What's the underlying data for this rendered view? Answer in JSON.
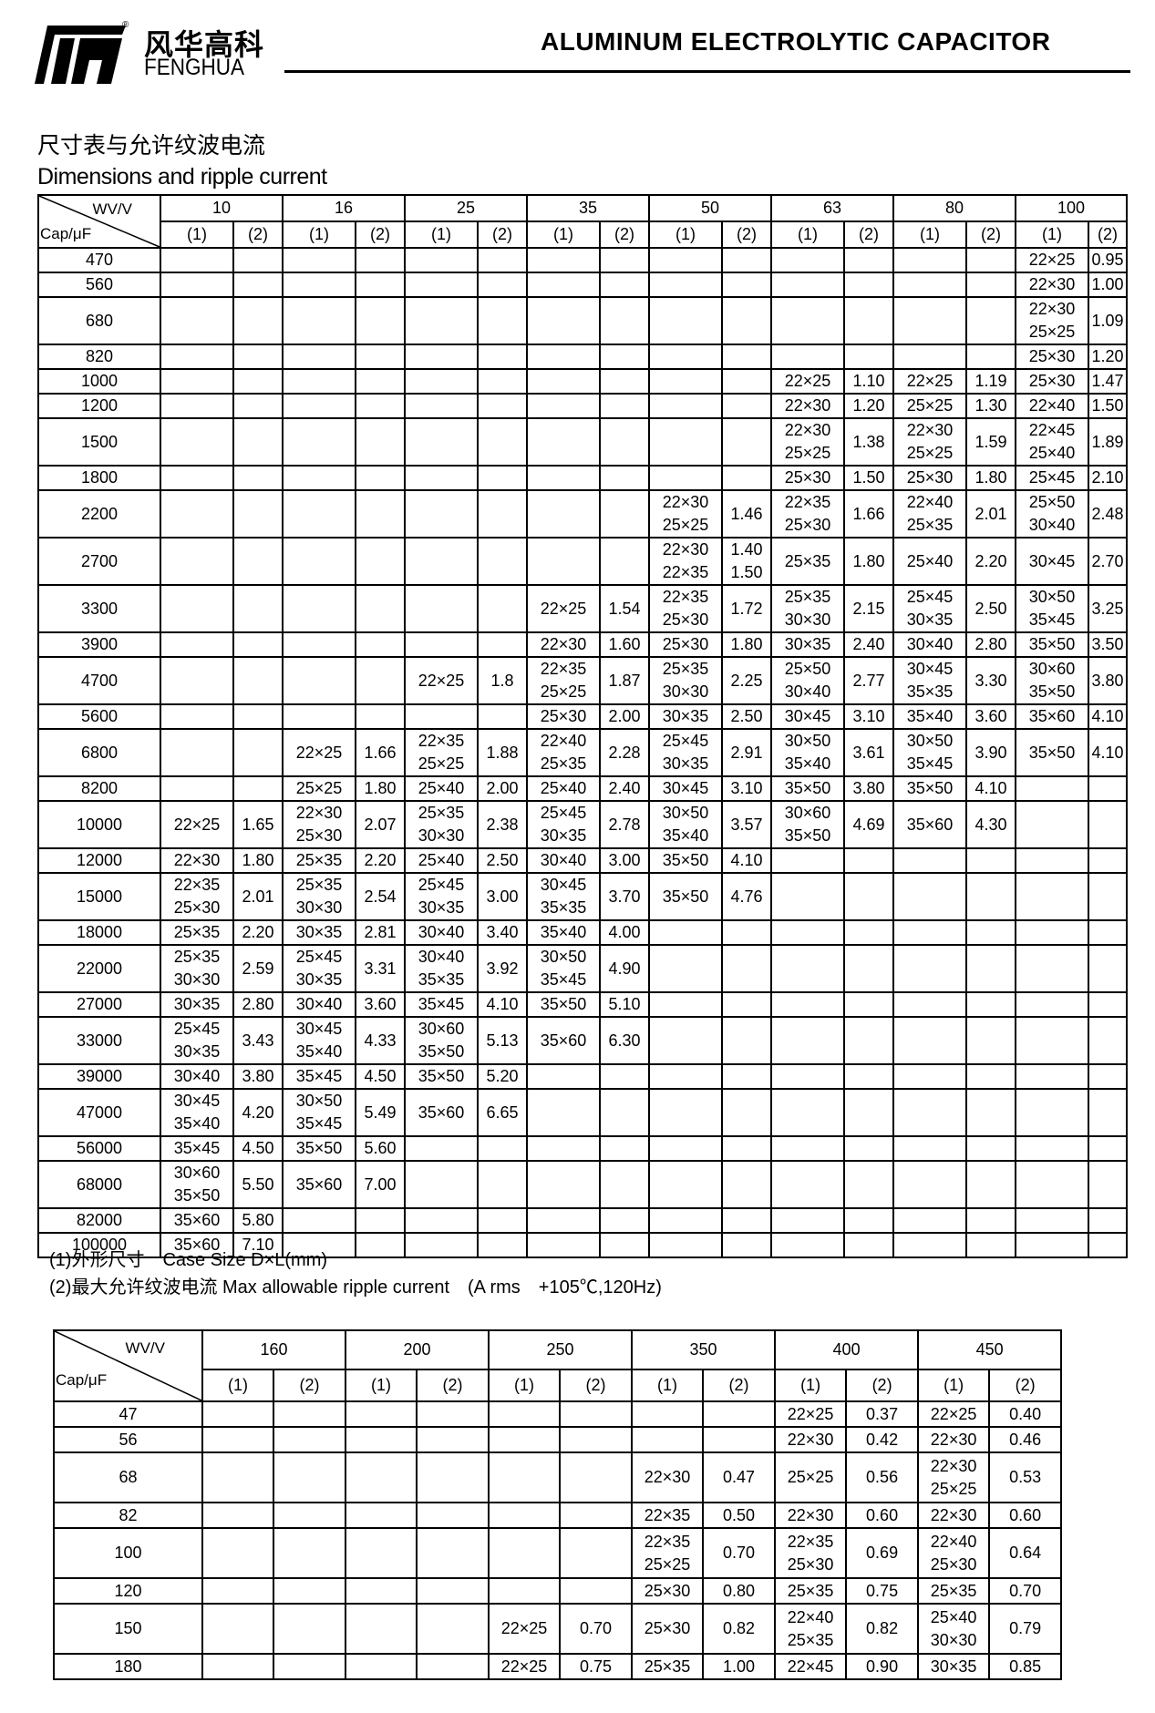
{
  "header": {
    "brand_cn": "风华高科",
    "brand_en": "FENGHUA",
    "registered": "®",
    "title": "ALUMINUM ELECTROLYTIC CAPACITOR"
  },
  "section": {
    "title_cn": "尺寸表与允许纹波电流",
    "title_en": "Dimensions and ripple current"
  },
  "table_labels": {
    "wv": "WV/V",
    "cap": "Cap/μF",
    "col1": "(1)",
    "col2": "(2)"
  },
  "table1": {
    "voltages": [
      "10",
      "16",
      "25",
      "35",
      "50",
      "63",
      "80",
      "100"
    ],
    "rows": [
      {
        "cap": "470",
        "tall": false,
        "cells": [
          "",
          "",
          "",
          "",
          "",
          "",
          "",
          "",
          "",
          "",
          "",
          "",
          "",
          "",
          "22×25",
          "0.95"
        ]
      },
      {
        "cap": "560",
        "tall": false,
        "cells": [
          "",
          "",
          "",
          "",
          "",
          "",
          "",
          "",
          "",
          "",
          "",
          "",
          "",
          "",
          "22×30",
          "1.00"
        ]
      },
      {
        "cap": "680",
        "tall": true,
        "cells": [
          "",
          "",
          "",
          "",
          "",
          "",
          "",
          "",
          "",
          "",
          "",
          "",
          "",
          "",
          "22×30\n25×25",
          "1.09"
        ]
      },
      {
        "cap": "820",
        "tall": false,
        "cells": [
          "",
          "",
          "",
          "",
          "",
          "",
          "",
          "",
          "",
          "",
          "",
          "",
          "",
          "",
          "25×30",
          "1.20"
        ]
      },
      {
        "cap": "1000",
        "tall": false,
        "cells": [
          "",
          "",
          "",
          "",
          "",
          "",
          "",
          "",
          "",
          "",
          "22×25",
          "1.10",
          "22×25",
          "1.19",
          "25×30",
          "1.47"
        ]
      },
      {
        "cap": "1200",
        "tall": false,
        "cells": [
          "",
          "",
          "",
          "",
          "",
          "",
          "",
          "",
          "",
          "",
          "22×30",
          "1.20",
          "25×25",
          "1.30",
          "22×40",
          "1.50"
        ]
      },
      {
        "cap": "1500",
        "tall": true,
        "cells": [
          "",
          "",
          "",
          "",
          "",
          "",
          "",
          "",
          "",
          "",
          "22×30\n25×25",
          "1.38",
          "22×30\n25×25",
          "1.59",
          "22×45\n25×40",
          "1.89"
        ]
      },
      {
        "cap": "1800",
        "tall": false,
        "cells": [
          "",
          "",
          "",
          "",
          "",
          "",
          "",
          "",
          "",
          "",
          "25×30",
          "1.50",
          "25×30",
          "1.80",
          "25×45",
          "2.10"
        ]
      },
      {
        "cap": "2200",
        "tall": true,
        "cells": [
          "",
          "",
          "",
          "",
          "",
          "",
          "",
          "",
          "22×30\n25×25",
          "1.46",
          "22×35\n25×30",
          "1.66",
          "22×40\n25×35",
          "2.01",
          "25×50\n30×40",
          "2.48"
        ]
      },
      {
        "cap": "2700",
        "tall": true,
        "cells": [
          "",
          "",
          "",
          "",
          "",
          "",
          "",
          "",
          "22×30\n22×35",
          "1.40\n1.50",
          "25×35",
          "1.80",
          "25×40",
          "2.20",
          "30×45",
          "2.70"
        ]
      },
      {
        "cap": "3300",
        "tall": true,
        "cells": [
          "",
          "",
          "",
          "",
          "",
          "",
          "22×25",
          "1.54",
          "22×35\n25×30",
          "1.72",
          "25×35\n30×30",
          "2.15",
          "25×45\n30×35",
          "2.50",
          "30×50\n35×45",
          "3.25"
        ]
      },
      {
        "cap": "3900",
        "tall": false,
        "cells": [
          "",
          "",
          "",
          "",
          "",
          "",
          "22×30",
          "1.60",
          "25×30",
          "1.80",
          "30×35",
          "2.40",
          "30×40",
          "2.80",
          "35×50",
          "3.50"
        ]
      },
      {
        "cap": "4700",
        "tall": true,
        "cells": [
          "",
          "",
          "",
          "",
          "22×25",
          "1.8",
          "22×35\n25×25",
          "1.87",
          "25×35\n30×30",
          "2.25",
          "25×50\n30×40",
          "2.77",
          "30×45\n35×35",
          "3.30",
          "30×60\n35×50",
          "3.80"
        ]
      },
      {
        "cap": "5600",
        "tall": false,
        "cells": [
          "",
          "",
          "",
          "",
          "",
          "",
          "25×30",
          "2.00",
          "30×35",
          "2.50",
          "30×45",
          "3.10",
          "35×40",
          "3.60",
          "35×60",
          "4.10"
        ]
      },
      {
        "cap": "6800",
        "tall": true,
        "cells": [
          "",
          "",
          "22×25",
          "1.66",
          "22×35\n25×25",
          "1.88",
          "22×40\n25×35",
          "2.28",
          "25×45\n30×35",
          "2.91",
          "30×50\n35×40",
          "3.61",
          "30×50\n35×45",
          "3.90",
          "35×50",
          "4.10"
        ]
      },
      {
        "cap": "8200",
        "tall": false,
        "cells": [
          "",
          "",
          "25×25",
          "1.80",
          "25×40",
          "2.00",
          "25×40",
          "2.40",
          "30×45",
          "3.10",
          "35×50",
          "3.80",
          "35×50",
          "4.10",
          "",
          ""
        ]
      },
      {
        "cap": "10000",
        "tall": true,
        "cells": [
          "22×25",
          "1.65",
          "22×30\n25×30",
          "2.07",
          "25×35\n30×30",
          "2.38",
          "25×45\n30×35",
          "2.78",
          "30×50\n35×40",
          "3.57",
          "30×60\n35×50",
          "4.69",
          "35×60",
          "4.30",
          "",
          ""
        ]
      },
      {
        "cap": "12000",
        "tall": false,
        "cells": [
          "22×30",
          "1.80",
          "25×35",
          "2.20",
          "25×40",
          "2.50",
          "30×40",
          "3.00",
          "35×50",
          "4.10",
          "",
          "",
          "",
          "",
          "",
          ""
        ]
      },
      {
        "cap": "15000",
        "tall": true,
        "cells": [
          "22×35\n25×30",
          "2.01",
          "25×35\n30×30",
          "2.54",
          "25×45\n30×35",
          "3.00",
          "30×45\n35×35",
          "3.70",
          "35×50",
          "4.76",
          "",
          "",
          "",
          "",
          "",
          ""
        ]
      },
      {
        "cap": "18000",
        "tall": false,
        "cells": [
          "25×35",
          "2.20",
          "30×35",
          "2.81",
          "30×40",
          "3.40",
          "35×40",
          "4.00",
          "",
          "",
          "",
          "",
          "",
          "",
          "",
          ""
        ]
      },
      {
        "cap": "22000",
        "tall": true,
        "cells": [
          "25×35\n30×30",
          "2.59",
          "25×45\n30×35",
          "3.31",
          "30×40\n35×35",
          "3.92",
          "30×50\n35×45",
          "4.90",
          "",
          "",
          "",
          "",
          "",
          "",
          "",
          ""
        ]
      },
      {
        "cap": "27000",
        "tall": false,
        "cells": [
          "30×35",
          "2.80",
          "30×40",
          "3.60",
          "35×45",
          "4.10",
          "35×50",
          "5.10",
          "",
          "",
          "",
          "",
          "",
          "",
          "",
          ""
        ]
      },
      {
        "cap": "33000",
        "tall": true,
        "cells": [
          "25×45\n30×35",
          "3.43",
          "30×45\n35×40",
          "4.33",
          "30×60\n35×50",
          "5.13",
          "35×60",
          "6.30",
          "",
          "",
          "",
          "",
          "",
          "",
          "",
          ""
        ]
      },
      {
        "cap": "39000",
        "tall": false,
        "cells": [
          "30×40",
          "3.80",
          "35×45",
          "4.50",
          "35×50",
          "5.20",
          "",
          "",
          "",
          "",
          "",
          "",
          "",
          "",
          "",
          ""
        ]
      },
      {
        "cap": "47000",
        "tall": true,
        "cells": [
          "30×45\n35×40",
          "4.20",
          "30×50\n35×45",
          "5.49",
          "35×60",
          "6.65",
          "",
          "",
          "",
          "",
          "",
          "",
          "",
          "",
          "",
          ""
        ]
      },
      {
        "cap": "56000",
        "tall": false,
        "cells": [
          "35×45",
          "4.50",
          "35×50",
          "5.60",
          "",
          "",
          "",
          "",
          "",
          "",
          "",
          "",
          "",
          "",
          "",
          ""
        ]
      },
      {
        "cap": "68000",
        "tall": true,
        "cells": [
          "30×60\n35×50",
          "5.50",
          "35×60",
          "7.00",
          "",
          "",
          "",
          "",
          "",
          "",
          "",
          "",
          "",
          "",
          "",
          ""
        ]
      },
      {
        "cap": "82000",
        "tall": false,
        "cells": [
          "35×60",
          "5.80",
          "",
          "",
          "",
          "",
          "",
          "",
          "",
          "",
          "",
          "",
          "",
          "",
          "",
          ""
        ]
      },
      {
        "cap": "100000",
        "tall": false,
        "cells": [
          "35×60",
          "7.10",
          "",
          "",
          "",
          "",
          "",
          "",
          "",
          "",
          "",
          "",
          "",
          "",
          "",
          ""
        ]
      }
    ]
  },
  "notes": {
    "note1": "(1)外形尺寸　Case Size D×L(mm)",
    "note2": "(2)最大允许纹波电流  Max allowable ripple current　(A rms　+105℃,120Hz)"
  },
  "table2": {
    "voltages": [
      "160",
      "200",
      "250",
      "350",
      "400",
      "450"
    ],
    "rows": [
      {
        "cap": "47",
        "tall": false,
        "cells": [
          "",
          "",
          "",
          "",
          "",
          "",
          "",
          "",
          "22×25",
          "0.37",
          "22×25",
          "0.40"
        ]
      },
      {
        "cap": "56",
        "tall": false,
        "cells": [
          "",
          "",
          "",
          "",
          "",
          "",
          "",
          "",
          "22×30",
          "0.42",
          "22×30",
          "0.46"
        ]
      },
      {
        "cap": "68",
        "tall": true,
        "cells": [
          "",
          "",
          "",
          "",
          "",
          "",
          "22×30",
          "0.47",
          "25×25",
          "0.56",
          "22×30\n25×25",
          "0.53"
        ]
      },
      {
        "cap": "82",
        "tall": false,
        "cells": [
          "",
          "",
          "",
          "",
          "",
          "",
          "22×35",
          "0.50",
          "22×30",
          "0.60",
          "22×30",
          "0.60"
        ]
      },
      {
        "cap": "100",
        "tall": true,
        "cells": [
          "",
          "",
          "",
          "",
          "",
          "",
          "22×35\n25×25",
          "0.70",
          "22×35\n25×30",
          "0.69",
          "22×40\n25×30",
          "0.64"
        ]
      },
      {
        "cap": "120",
        "tall": false,
        "cells": [
          "",
          "",
          "",
          "",
          "",
          "",
          "25×30",
          "0.80",
          "25×35",
          "0.75",
          "25×35",
          "0.70"
        ]
      },
      {
        "cap": "150",
        "tall": true,
        "cells": [
          "",
          "",
          "",
          "",
          "22×25",
          "0.70",
          "25×30",
          "0.82",
          "22×40\n25×35",
          "0.82",
          "25×40\n30×30",
          "0.79"
        ]
      },
      {
        "cap": "180",
        "tall": false,
        "cells": [
          "",
          "",
          "",
          "",
          "22×25",
          "0.75",
          "25×35",
          "1.00",
          "22×45",
          "0.90",
          "30×35",
          "0.85"
        ]
      }
    ]
  }
}
